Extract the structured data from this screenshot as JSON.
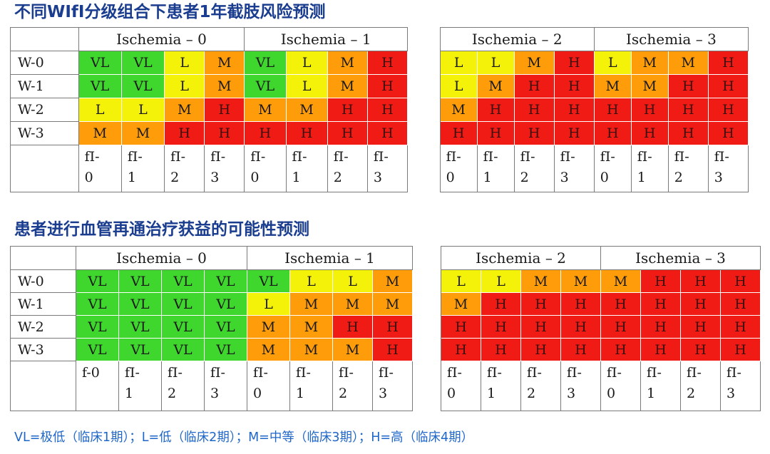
{
  "table1": {
    "title": "不同WIfI分级组合下患者1年截肢风险预测",
    "groups": [
      "Ischemia – 0",
      "Ischemia – 1",
      "Ischemia – 2",
      "Ischemia – 3"
    ],
    "rows": [
      {
        "label": "W-0",
        "cells": [
          "VL",
          "VL",
          "L",
          "M",
          "VL",
          "L",
          "M",
          "H",
          "L",
          "L",
          "M",
          "H",
          "L",
          "M",
          "M",
          "H"
        ]
      },
      {
        "label": "W-1",
        "cells": [
          "VL",
          "VL",
          "L",
          "M",
          "VL",
          "L",
          "M",
          "H",
          "L",
          "M",
          "H",
          "H",
          "M",
          "M",
          "H",
          "H"
        ]
      },
      {
        "label": "W-2",
        "cells": [
          "L",
          "L",
          "M",
          "H",
          "M",
          "M",
          "H",
          "H",
          "M",
          "H",
          "H",
          "H",
          "H",
          "H",
          "H",
          "H"
        ]
      },
      {
        "label": "W-3",
        "cells": [
          "M",
          "M",
          "H",
          "H",
          "H",
          "H",
          "H",
          "H",
          "H",
          "H",
          "H",
          "H",
          "H",
          "H",
          "H",
          "H"
        ]
      }
    ],
    "fi": [
      [
        "fI-",
        "0"
      ],
      [
        "fI-",
        "1"
      ],
      [
        "fI-",
        "2"
      ],
      [
        "fI-",
        "3"
      ],
      [
        "fI-",
        "0"
      ],
      [
        "fI-",
        "1"
      ],
      [
        "fI-",
        "2"
      ],
      [
        "fI-",
        "3"
      ],
      [
        "fI-",
        "0"
      ],
      [
        "fI-",
        "1"
      ],
      [
        "fI-",
        "2"
      ],
      [
        "fI-",
        "3"
      ],
      [
        "fI-",
        "0"
      ],
      [
        "fI-",
        "1"
      ],
      [
        "fI-",
        "2"
      ],
      [
        "fI-",
        "3"
      ]
    ]
  },
  "table2": {
    "title": "患者进行血管再通治疗获益的可能性预测",
    "groups": [
      "Ischemia – 0",
      "Ischemia – 1",
      "Ischemia – 2",
      "Ischemia – 3"
    ],
    "rows": [
      {
        "label": "W-0",
        "cells": [
          "VL",
          "VL",
          "VL",
          "VL",
          "VL",
          "L",
          "L",
          "M",
          "L",
          "L",
          "M",
          "M",
          "M",
          "H",
          "H",
          "H"
        ]
      },
      {
        "label": "W-1",
        "cells": [
          "VL",
          "VL",
          "VL",
          "VL",
          "L",
          "M",
          "M",
          "M",
          "M",
          "H",
          "H",
          "H",
          "H",
          "H",
          "H",
          "H"
        ]
      },
      {
        "label": "W-2",
        "cells": [
          "VL",
          "VL",
          "VL",
          "VL",
          "M",
          "M",
          "H",
          "H",
          "H",
          "H",
          "H",
          "H",
          "H",
          "H",
          "H",
          "H"
        ]
      },
      {
        "label": "W-3",
        "cells": [
          "VL",
          "VL",
          "VL",
          "VL",
          "M",
          "M",
          "M",
          "H",
          "H",
          "H",
          "H",
          "H",
          "H",
          "H",
          "H",
          "H"
        ]
      }
    ],
    "fi": [
      [
        "f-0",
        ""
      ],
      [
        "fI-",
        "1"
      ],
      [
        "fI-",
        "2"
      ],
      [
        "fI-",
        "3"
      ],
      [
        "fI-",
        "0"
      ],
      [
        "fI-",
        "1"
      ],
      [
        "fI-",
        "2"
      ],
      [
        "fI-",
        "3"
      ],
      [
        "fI-",
        "0"
      ],
      [
        "fI-",
        "1"
      ],
      [
        "fI-",
        "2"
      ],
      [
        "fI-",
        "3"
      ],
      [
        "fI-",
        "0"
      ],
      [
        "fI-",
        "1"
      ],
      [
        "fI-",
        "2"
      ],
      [
        "fI-",
        "3"
      ]
    ]
  },
  "colors": {
    "VL": "#3fd62e",
    "L": "#f5f20a",
    "M": "#ff9c0a",
    "H": "#ef1b14"
  },
  "legend": "VL=极低（临床1期）；L=低（临床2期）；M=中等（临床3期）；H=高（临床4期）"
}
